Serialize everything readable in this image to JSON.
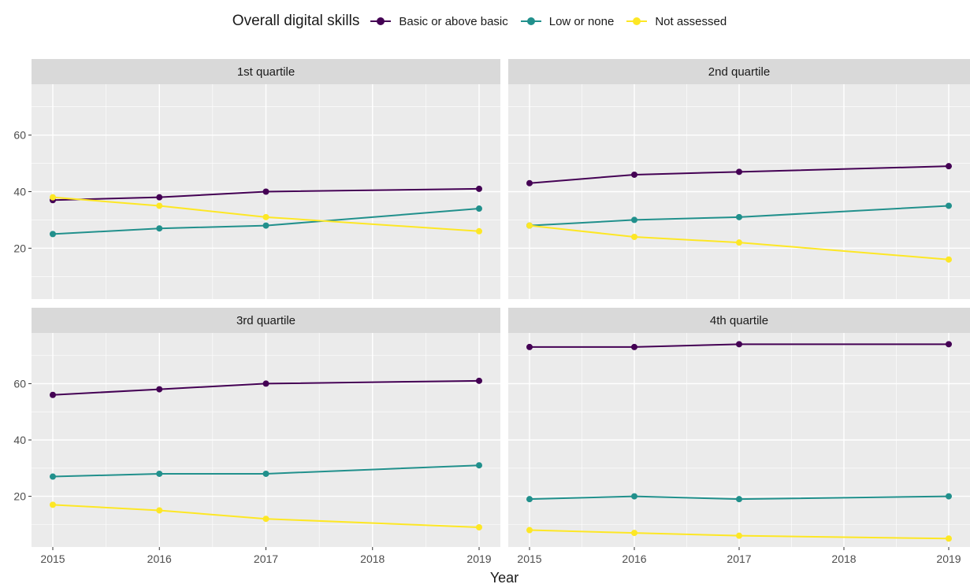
{
  "legend": {
    "title": "Overall digital skills",
    "items": [
      {
        "label": "Basic or above basic"
      },
      {
        "label": "Low or none"
      },
      {
        "label": "Not assessed"
      }
    ]
  },
  "colors": {
    "basic": "#440154",
    "low": "#21908c",
    "not_assessed": "#fde725",
    "panel_bg": "#ebebeb",
    "strip_bg": "#d9d9d9",
    "grid": "#ffffff"
  },
  "chart_data": {
    "type": "line",
    "xlabel": "Year",
    "ylabel": "",
    "x_ticks": [
      2015,
      2016,
      2017,
      2018,
      2019
    ],
    "y_ticks": [
      20,
      40,
      60
    ],
    "xlim": [
      2015,
      2019
    ],
    "panels": [
      {
        "title": "1st quartile",
        "series": [
          {
            "name": "Basic or above basic",
            "x": [
              2015,
              2016,
              2017,
              2019
            ],
            "values": [
              37,
              38,
              40,
              41
            ]
          },
          {
            "name": "Low or none",
            "x": [
              2015,
              2016,
              2017,
              2019
            ],
            "values": [
              25,
              27,
              28,
              34
            ]
          },
          {
            "name": "Not assessed",
            "x": [
              2015,
              2016,
              2017,
              2019
            ],
            "values": [
              38,
              35,
              31,
              26
            ]
          }
        ]
      },
      {
        "title": "2nd quartile",
        "series": [
          {
            "name": "Basic or above basic",
            "x": [
              2015,
              2016,
              2017,
              2019
            ],
            "values": [
              43,
              46,
              47,
              49
            ]
          },
          {
            "name": "Low or none",
            "x": [
              2015,
              2016,
              2017,
              2019
            ],
            "values": [
              28,
              30,
              31,
              35
            ]
          },
          {
            "name": "Not assessed",
            "x": [
              2015,
              2016,
              2017,
              2019
            ],
            "values": [
              28,
              24,
              22,
              16
            ]
          }
        ]
      },
      {
        "title": "3rd quartile",
        "series": [
          {
            "name": "Basic or above basic",
            "x": [
              2015,
              2016,
              2017,
              2019
            ],
            "values": [
              56,
              58,
              60,
              61
            ]
          },
          {
            "name": "Low or none",
            "x": [
              2015,
              2016,
              2017,
              2019
            ],
            "values": [
              27,
              28,
              28,
              31
            ]
          },
          {
            "name": "Not assessed",
            "x": [
              2015,
              2016,
              2017,
              2019
            ],
            "values": [
              17,
              15,
              12,
              9
            ]
          }
        ]
      },
      {
        "title": "4th quartile",
        "series": [
          {
            "name": "Basic or above basic",
            "x": [
              2015,
              2016,
              2017,
              2019
            ],
            "values": [
              73,
              73,
              74,
              74
            ]
          },
          {
            "name": "Low or none",
            "x": [
              2015,
              2016,
              2017,
              2019
            ],
            "values": [
              19,
              20,
              19,
              20
            ]
          },
          {
            "name": "Not assessed",
            "x": [
              2015,
              2016,
              2017,
              2019
            ],
            "values": [
              8,
              7,
              6,
              5
            ]
          }
        ]
      }
    ]
  }
}
